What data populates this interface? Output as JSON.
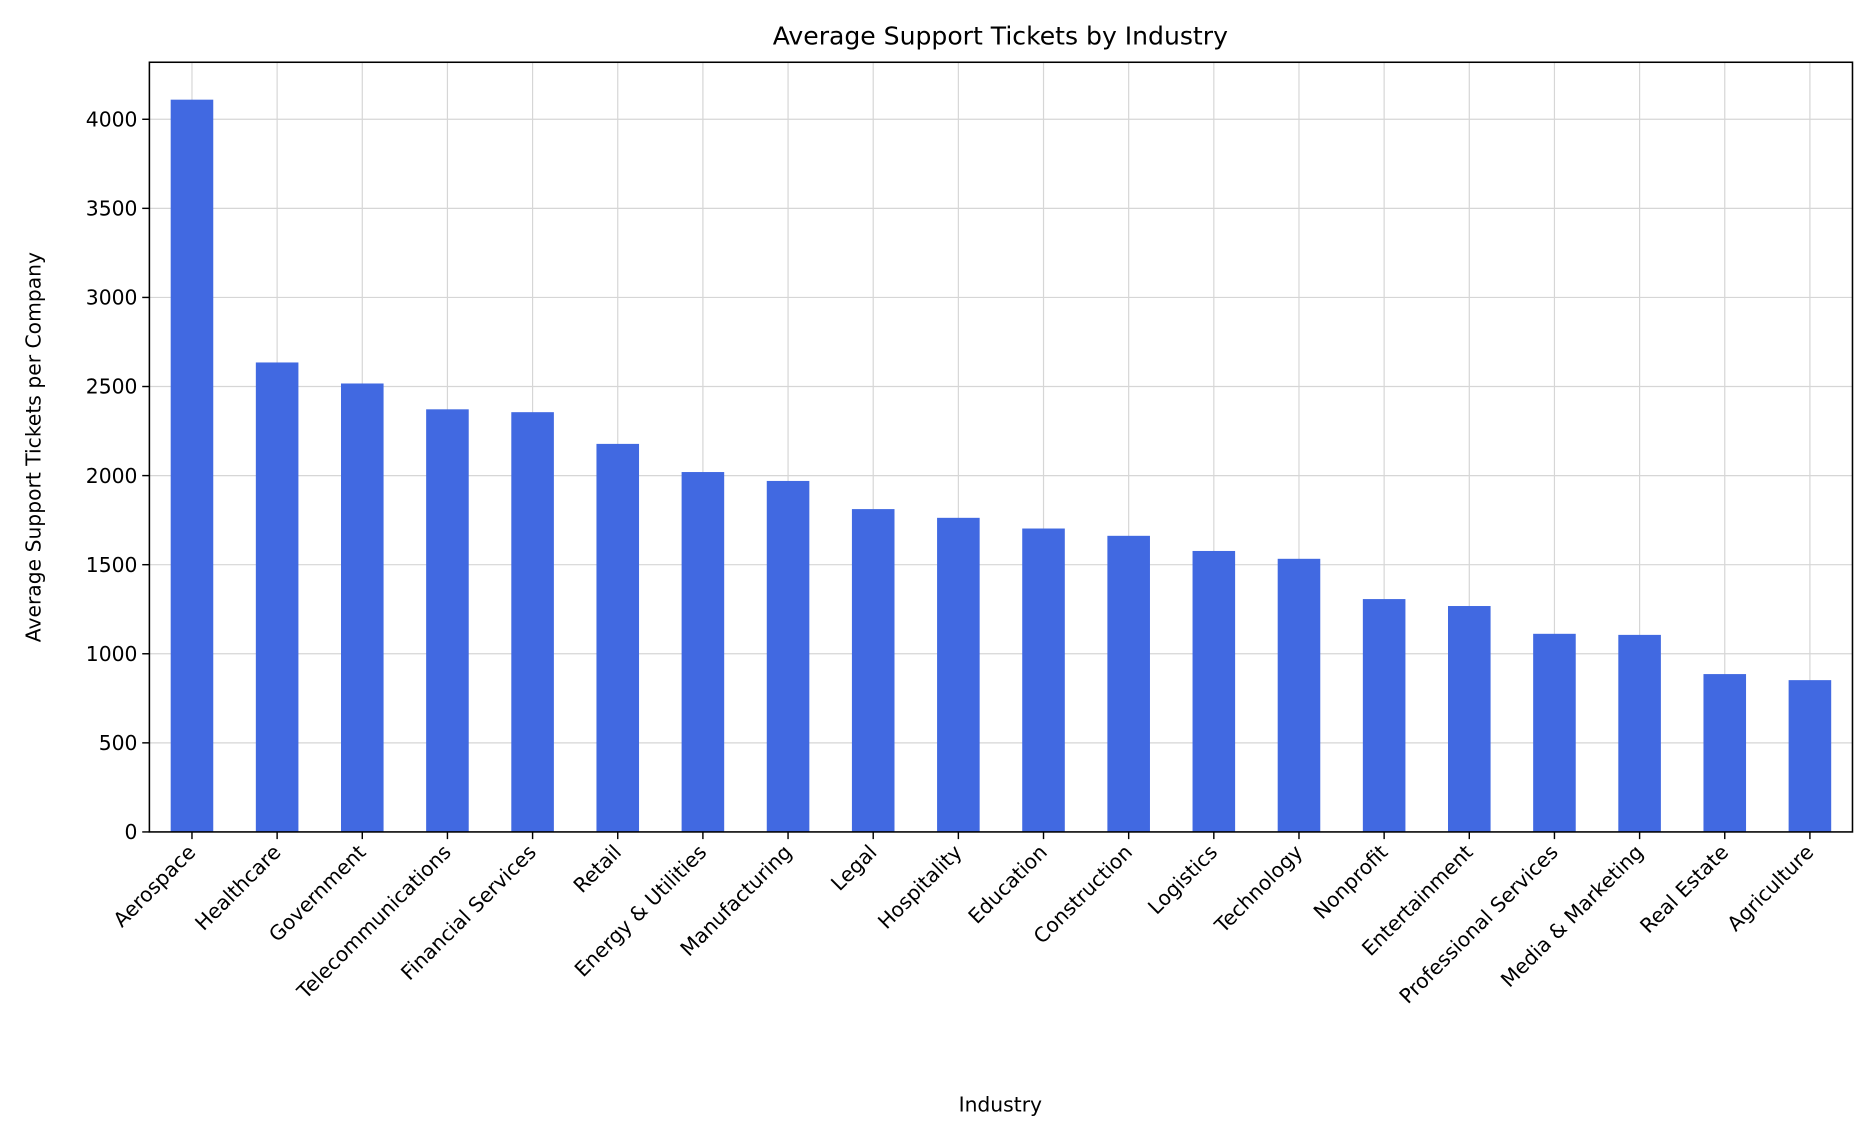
{
  "chart_data": {
    "type": "bar",
    "title": "Average Support Tickets by Industry",
    "xlabel": "Industry",
    "ylabel": "Average Support Tickets per Company",
    "categories": [
      "Aerospace",
      "Healthcare",
      "Government",
      "Telecommunications",
      "Financial Services",
      "Retail",
      "Energy & Utilities",
      "Manufacturing",
      "Legal",
      "Hospitality",
      "Education",
      "Construction",
      "Logistics",
      "Technology",
      "Nonprofit",
      "Entertainment",
      "Professional Services",
      "Media & Marketing",
      "Real Estate",
      "Agriculture"
    ],
    "values": [
      4110,
      2635,
      2517,
      2372,
      2356,
      2178,
      2020,
      1970,
      1812,
      1763,
      1703,
      1662,
      1577,
      1533,
      1307,
      1268,
      1112,
      1106,
      886,
      852
    ],
    "ylim": [
      0,
      4320
    ],
    "yticks": [
      0,
      500,
      1000,
      1500,
      2000,
      2500,
      3000,
      3500,
      4000
    ],
    "grid": true,
    "bar_color": "#4169e1",
    "legend": "none"
  }
}
